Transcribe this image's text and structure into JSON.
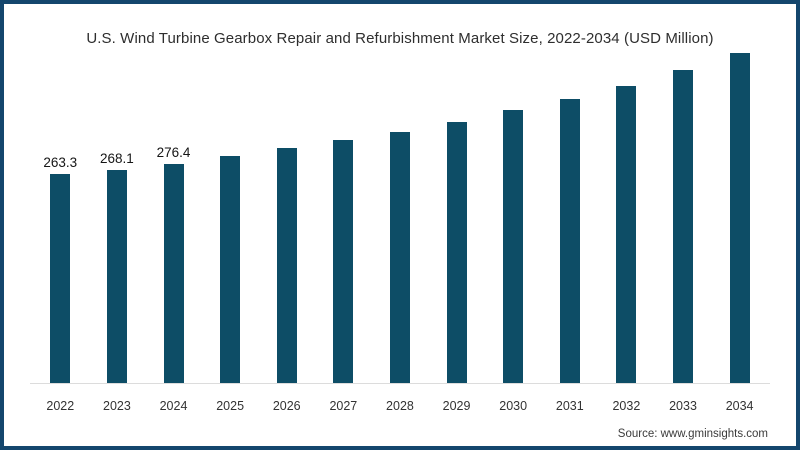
{
  "chart": {
    "title": "U.S. Wind Turbine Gearbox Repair and Refurbishment Market Size, 2022-2034 (USD Million)",
    "source_label": "Source: www.gminsights.com"
  },
  "colors": {
    "bar": "#0d4d66",
    "frame_border": "#14466d",
    "axis_line": "#dcdcdc"
  },
  "chart_data": {
    "type": "bar",
    "title": "U.S. Wind Turbine Gearbox Repair and Refurbishment Market Size, 2022-2034 (USD Million)",
    "categories": [
      "2022",
      "2023",
      "2024",
      "2025",
      "2026",
      "2027",
      "2028",
      "2029",
      "2030",
      "2031",
      "2032",
      "2033",
      "2034"
    ],
    "values": [
      263.3,
      268.1,
      276.4,
      285.9,
      295.8,
      306.1,
      317.2,
      329.8,
      343.7,
      358.2,
      374.9,
      394.3,
      415.6
    ],
    "value_labels": [
      "263.3",
      "268.1",
      "276.4",
      null,
      null,
      null,
      null,
      null,
      null,
      null,
      null,
      null,
      null
    ],
    "xlabel": "",
    "ylabel": "",
    "units": "USD Million",
    "ylim": [
      0,
      420
    ],
    "grid": false,
    "legend": false,
    "y_axis_visible": false,
    "source": "Source: www.gminsights.com"
  }
}
